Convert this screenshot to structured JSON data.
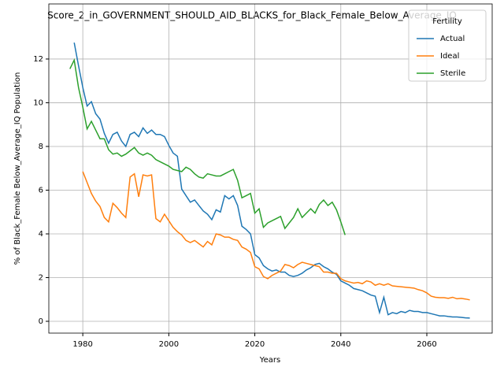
{
  "chart_data": {
    "type": "line",
    "title": "Score_2_in_GOVERNMENT_SHOULD_AID_BLACKS_for_Black_Female_Below_Average_IQ",
    "xlabel": "Years",
    "ylabel": "% of Black_Female Below_Average_IQ Population",
    "x": [
      1977,
      1978,
      1979,
      1980,
      1981,
      1982,
      1983,
      1984,
      1985,
      1986,
      1987,
      1988,
      1989,
      1990,
      1991,
      1992,
      1993,
      1994,
      1995,
      1996,
      1997,
      1998,
      1999,
      2000,
      2001,
      2002,
      2003,
      2004,
      2005,
      2006,
      2007,
      2008,
      2009,
      2010,
      2011,
      2012,
      2013,
      2014,
      2015,
      2016,
      2017,
      2018,
      2019,
      2020,
      2021,
      2022,
      2023,
      2024,
      2025,
      2026,
      2027,
      2028,
      2029,
      2030,
      2031,
      2032,
      2033,
      2034,
      2035,
      2036,
      2037,
      2038,
      2039,
      2040,
      2041,
      2042,
      2043,
      2044,
      2045,
      2046,
      2047,
      2048,
      2049,
      2050,
      2051,
      2052,
      2053,
      2054,
      2055,
      2056,
      2057,
      2058,
      2059,
      2060,
      2061,
      2062,
      2063,
      2064,
      2065,
      2066,
      2067,
      2068,
      2069,
      2070
    ],
    "series": [
      {
        "name": "Actual",
        "color": "#1f77b4",
        "values": [
          null,
          12.75,
          11.7,
          10.7,
          9.85,
          10.05,
          9.5,
          9.25,
          8.6,
          8.15,
          8.55,
          8.65,
          8.25,
          8.0,
          8.55,
          8.65,
          8.45,
          8.85,
          8.6,
          8.75,
          8.55,
          8.55,
          8.45,
          8.05,
          7.7,
          7.55,
          6.05,
          5.75,
          5.45,
          5.55,
          5.3,
          5.05,
          4.9,
          4.65,
          5.1,
          5.0,
          5.75,
          5.6,
          5.75,
          5.3,
          4.35,
          4.2,
          4.0,
          3.05,
          2.9,
          2.55,
          2.4,
          2.3,
          2.35,
          2.25,
          2.25,
          2.1,
          2.05,
          2.1,
          2.2,
          2.35,
          2.45,
          2.6,
          2.65,
          2.5,
          2.4,
          2.25,
          2.15,
          1.85,
          1.75,
          1.65,
          1.5,
          1.45,
          1.4,
          1.3,
          1.2,
          1.15,
          0.4,
          1.1,
          0.3,
          0.4,
          0.35,
          0.45,
          0.4,
          0.5,
          0.45,
          0.45,
          0.4,
          0.4,
          0.35,
          0.3,
          0.25,
          0.25,
          0.22,
          0.2,
          0.2,
          0.18,
          0.16,
          0.15
        ]
      },
      {
        "name": "Ideal",
        "color": "#ff7f0e",
        "values": [
          null,
          null,
          null,
          6.85,
          6.35,
          5.85,
          5.5,
          5.25,
          4.75,
          4.55,
          5.4,
          5.2,
          4.95,
          4.75,
          6.6,
          6.75,
          5.7,
          6.7,
          6.65,
          6.7,
          4.7,
          4.55,
          4.9,
          4.6,
          4.3,
          4.1,
          3.95,
          3.7,
          3.6,
          3.7,
          3.55,
          3.4,
          3.65,
          3.5,
          4.0,
          3.95,
          3.85,
          3.85,
          3.75,
          3.7,
          3.4,
          3.3,
          3.15,
          2.5,
          2.4,
          2.05,
          1.95,
          2.1,
          2.2,
          2.3,
          2.6,
          2.55,
          2.45,
          2.6,
          2.7,
          2.65,
          2.6,
          2.55,
          2.5,
          2.25,
          2.25,
          2.2,
          2.2,
          1.95,
          1.85,
          1.8,
          1.75,
          1.78,
          1.72,
          1.85,
          1.8,
          1.65,
          1.72,
          1.65,
          1.72,
          1.62,
          1.6,
          1.58,
          1.56,
          1.54,
          1.52,
          1.45,
          1.4,
          1.3,
          1.15,
          1.1,
          1.08,
          1.08,
          1.05,
          1.1,
          1.03,
          1.05,
          1.02,
          0.98
        ]
      },
      {
        "name": "Sterile",
        "color": "#2ca02c",
        "values": [
          11.55,
          11.95,
          10.7,
          9.8,
          8.8,
          9.15,
          8.75,
          8.35,
          8.35,
          7.85,
          7.65,
          7.7,
          7.55,
          7.65,
          7.8,
          7.95,
          7.7,
          7.6,
          7.7,
          7.6,
          7.4,
          7.3,
          7.2,
          7.1,
          6.95,
          6.9,
          6.85,
          7.05,
          6.95,
          6.75,
          6.6,
          6.55,
          6.75,
          6.7,
          6.65,
          6.65,
          6.75,
          6.85,
          6.95,
          6.45,
          5.65,
          5.75,
          5.85,
          4.95,
          5.15,
          4.3,
          4.5,
          4.6,
          4.7,
          4.8,
          4.25,
          4.5,
          4.75,
          5.15,
          4.75,
          4.95,
          5.15,
          4.95,
          5.35,
          5.55,
          5.3,
          5.45,
          5.1,
          4.55,
          3.95,
          null,
          null,
          null,
          null,
          null,
          null,
          null,
          null,
          null,
          null,
          null,
          null,
          null,
          null,
          null,
          null,
          null,
          null,
          null,
          null,
          null,
          null,
          null,
          null,
          null,
          null,
          null,
          null,
          null
        ]
      }
    ],
    "xlim": [
      1972.1,
      2075.2
    ],
    "ylim": [
      -0.54,
      14.52
    ],
    "xticks": [
      1980,
      2000,
      2020,
      2040,
      2060
    ],
    "yticks": [
      0,
      2,
      4,
      6,
      8,
      10,
      12
    ],
    "grid": true,
    "legend_title": "Fertility",
    "legend": "upper right"
  }
}
